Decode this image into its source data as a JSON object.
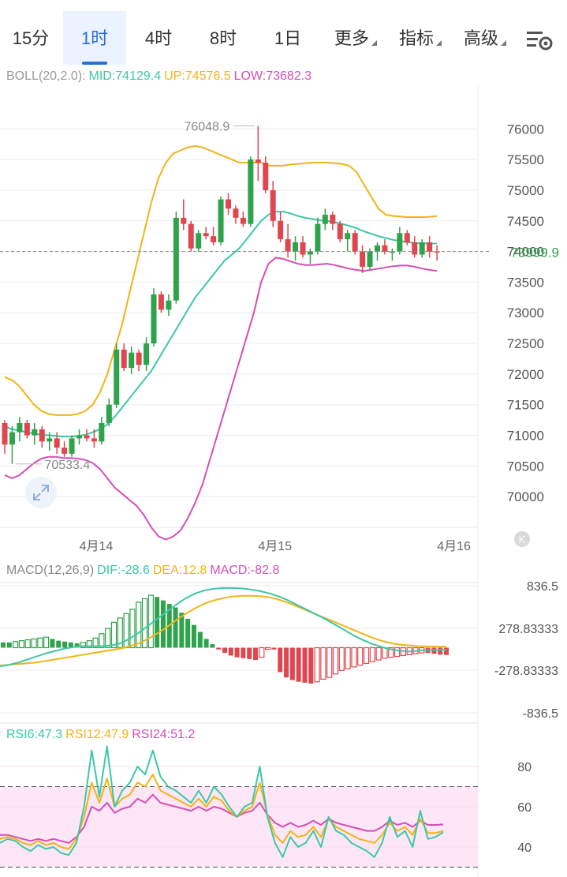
{
  "tabs": [
    {
      "label": "15分",
      "active": false,
      "dropdown": false
    },
    {
      "label": "1时",
      "active": true,
      "dropdown": false
    },
    {
      "label": "4时",
      "active": false,
      "dropdown": false
    },
    {
      "label": "8时",
      "active": false,
      "dropdown": false
    },
    {
      "label": "1日",
      "active": false,
      "dropdown": false
    },
    {
      "label": "更多",
      "active": false,
      "dropdown": true
    },
    {
      "label": "指标",
      "active": false,
      "dropdown": true
    },
    {
      "label": "高级",
      "active": false,
      "dropdown": true
    }
  ],
  "settings_icon": "chart-settings-icon",
  "expand_icon": "expand-arrows-icon",
  "logo_icon": "k-logo-icon",
  "colors": {
    "up": "#2fa24c",
    "down": "#e0464f",
    "mid": "#3cc8a6",
    "upper": "#f0b417",
    "lower": "#d54fb4",
    "label": "#888888",
    "grid": "#eeeeee",
    "rsi_zone": "#fde6f6"
  },
  "boll": {
    "name": "BOLL(20,2.0):",
    "mid_label": "MID:74129.4",
    "up_label": "UP:74576.5",
    "low_label": "LOW:73682.3"
  },
  "macd_legend": {
    "name": "MACD(12,26,9)",
    "dif_label": "DIF:-28.6",
    "dea_label": "DEA:12.8",
    "macd_label": "MACD:-82.8"
  },
  "rsi_legend": {
    "rsi6_label": "RSI6:47.3",
    "rsi12_label": "RSI12:47.9",
    "rsi24_label": "RSI24:51.2"
  },
  "chart_data": [
    {
      "type": "candlestick",
      "panel": "price",
      "y_ticks": [
        "76000",
        "75500",
        "75000",
        "74500",
        "74000",
        "73500",
        "73000",
        "72500",
        "72000",
        "71500",
        "71000",
        "70500",
        "70000"
      ],
      "ylim": [
        69500,
        76300
      ],
      "date_labels": [
        {
          "label": "4月14",
          "index": 11
        },
        {
          "label": "4月15",
          "index": 35
        },
        {
          "label": "4月16",
          "index": 59
        }
      ],
      "current_price": "73999.9",
      "current_price_value": 73999.9,
      "high_marker": {
        "label": "76048.9",
        "index": 34
      },
      "low_marker": {
        "label": "70533.4",
        "index": 1
      },
      "candles": [
        [
          71200,
          71250,
          70700,
          70850
        ],
        [
          70850,
          71150,
          70533.4,
          71050
        ],
        [
          71050,
          71300,
          70900,
          71200
        ],
        [
          71200,
          71250,
          70950,
          71000
        ],
        [
          71000,
          71200,
          70850,
          71100
        ],
        [
          71100,
          71150,
          70800,
          70900
        ],
        [
          70900,
          71050,
          70750,
          70950
        ],
        [
          70950,
          71050,
          70700,
          70800
        ],
        [
          70800,
          70900,
          70650,
          70700
        ],
        [
          70700,
          71000,
          70650,
          70950
        ],
        [
          70950,
          71100,
          70850,
          71000
        ],
        [
          71000,
          71100,
          70900,
          70950
        ],
        [
          70950,
          71100,
          70800,
          70900
        ],
        [
          70900,
          71300,
          70850,
          71200
        ],
        [
          71200,
          71600,
          71150,
          71500
        ],
        [
          71500,
          72500,
          71450,
          72400
        ],
        [
          72400,
          72500,
          72050,
          72100
        ],
        [
          72100,
          72450,
          72000,
          72350
        ],
        [
          72350,
          72400,
          72050,
          72150
        ],
        [
          72150,
          72600,
          72050,
          72500
        ],
        [
          72500,
          73400,
          72450,
          73300
        ],
        [
          73300,
          73350,
          73000,
          73050
        ],
        [
          73050,
          73300,
          72950,
          73200
        ],
        [
          73200,
          74650,
          73150,
          74550
        ],
        [
          74550,
          74850,
          74350,
          74450
        ],
        [
          74450,
          74500,
          74000,
          74050
        ],
        [
          74050,
          74350,
          74000,
          74300
        ],
        [
          74300,
          74400,
          74200,
          74250
        ],
        [
          74250,
          74400,
          74100,
          74150
        ],
        [
          74150,
          74900,
          74100,
          74850
        ],
        [
          74850,
          74950,
          74600,
          74700
        ],
        [
          74700,
          74750,
          74450,
          74550
        ],
        [
          74550,
          74650,
          74400,
          74450
        ],
        [
          74450,
          75550,
          74400,
          75500
        ],
        [
          75500,
          76048.9,
          75150,
          75450
        ],
        [
          75450,
          75550,
          74950,
          75000
        ],
        [
          75000,
          75150,
          74400,
          74500
        ],
        [
          74500,
          74650,
          74150,
          74200
        ],
        [
          74200,
          74450,
          73900,
          74000
        ],
        [
          74000,
          74250,
          73850,
          74150
        ],
        [
          74150,
          74250,
          73900,
          73950
        ],
        [
          73950,
          74050,
          73800,
          74000
        ],
        [
          74000,
          74550,
          73950,
          74450
        ],
        [
          74450,
          74700,
          74350,
          74600
        ],
        [
          74600,
          74650,
          74350,
          74450
        ],
        [
          74450,
          74500,
          74150,
          74200
        ],
        [
          74200,
          74350,
          74000,
          74300
        ],
        [
          74300,
          74350,
          73950,
          74000
        ],
        [
          74000,
          74100,
          73650,
          73750
        ],
        [
          73750,
          74050,
          73700,
          74000
        ],
        [
          74000,
          74150,
          73850,
          74100
        ],
        [
          74100,
          74200,
          73950,
          74000
        ],
        [
          74000,
          74050,
          73850,
          74000
        ],
        [
          74000,
          74400,
          73950,
          74300
        ],
        [
          74300,
          74350,
          74100,
          74150
        ],
        [
          74150,
          74250,
          73900,
          73950
        ],
        [
          73950,
          74200,
          73900,
          74150
        ],
        [
          74150,
          74250,
          73900,
          74000
        ],
        [
          74000,
          74100,
          73850,
          73999.9
        ]
      ],
      "mid": [
        71150,
        71100,
        71080,
        71050,
        71030,
        71010,
        71000,
        70990,
        70980,
        70980,
        70990,
        71010,
        71050,
        71100,
        71180,
        71300,
        71450,
        71600,
        71750,
        71900,
        72050,
        72250,
        72450,
        72650,
        72850,
        73050,
        73250,
        73400,
        73550,
        73700,
        73850,
        73950,
        74050,
        74200,
        74350,
        74500,
        74600,
        74650,
        74650,
        74620,
        74580,
        74550,
        74530,
        74510,
        74500,
        74480,
        74450,
        74420,
        74380,
        74330,
        74290,
        74250,
        74220,
        74190,
        74170,
        74150,
        74140,
        74130,
        74130.5,
        74129.4
      ],
      "upper": [
        71950,
        71900,
        71800,
        71650,
        71500,
        71400,
        71350,
        71330,
        71330,
        71330,
        71350,
        71400,
        71500,
        71700,
        72000,
        72400,
        72800,
        73300,
        73800,
        74300,
        74800,
        75200,
        75450,
        75600,
        75650,
        75700,
        75720,
        75700,
        75650,
        75600,
        75550,
        75500,
        75450,
        75450,
        75450,
        75450,
        75400,
        75400,
        75400,
        75420,
        75430,
        75440,
        75450,
        75450,
        75450,
        75440,
        75430,
        75400,
        75300,
        75100,
        74900,
        74700,
        74600,
        74580,
        74570,
        74560,
        74560,
        74560,
        74565,
        74576.5
      ],
      "lower": [
        70350,
        70300,
        70350,
        70450,
        70550,
        70620,
        70650,
        70650,
        70630,
        70630,
        70620,
        70600,
        70550,
        70450,
        70300,
        70150,
        70050,
        69950,
        69850,
        69700,
        69500,
        69350,
        69300,
        69350,
        69450,
        69650,
        69900,
        70200,
        70600,
        71000,
        71400,
        71800,
        72200,
        72600,
        73000,
        73500,
        73800,
        73900,
        73880,
        73840,
        73800,
        73780,
        73780,
        73790,
        73800,
        73780,
        73750,
        73720,
        73700,
        73680,
        73700,
        73720,
        73740,
        73760,
        73770,
        73770,
        73750,
        73720,
        73700,
        73682.3
      ]
    },
    {
      "type": "bar+line",
      "panel": "macd",
      "y_ticks": [
        "836.5",
        "278.83333",
        "-278.83333",
        "-836.5"
      ],
      "ylim": [
        -900,
        900
      ],
      "histogram": [
        60,
        60,
        70,
        80,
        90,
        100,
        110,
        120,
        100,
        80,
        70,
        60,
        50,
        60,
        80,
        110,
        160,
        220,
        290,
        340,
        390,
        440,
        520,
        560,
        600,
        580,
        540,
        500,
        460,
        400,
        330,
        260,
        180,
        100,
        40,
        -20,
        -60,
        -90,
        -110,
        -120,
        -130,
        -140,
        -110,
        -20,
        -20,
        -280,
        -340,
        -370,
        -390,
        -400,
        -410,
        -390,
        -360,
        -340,
        -300,
        -260,
        -240,
        -220,
        -200,
        -180,
        -160,
        -140,
        -120,
        -110,
        -100,
        -90,
        -80,
        -70,
        -60,
        -60,
        -70,
        -80,
        -82.8
      ],
      "dif": [
        -240,
        -220,
        -190,
        -150,
        -110,
        -70,
        -40,
        -10,
        10,
        20,
        20,
        20,
        30,
        60,
        120,
        200,
        290,
        380,
        470,
        560,
        640,
        700,
        740,
        760,
        770,
        770,
        765,
        750,
        730,
        700,
        660,
        610,
        550,
        490,
        430,
        370,
        300,
        230,
        160,
        100,
        50,
        10,
        -20,
        -40,
        -50,
        -40,
        -30,
        -30,
        -28.6
      ],
      "dea": [
        -230,
        -220,
        -210,
        -200,
        -190,
        -170,
        -150,
        -130,
        -110,
        -90,
        -70,
        -50,
        -30,
        -10,
        20,
        60,
        120,
        190,
        270,
        360,
        440,
        510,
        570,
        610,
        640,
        660,
        670,
        670,
        665,
        650,
        620,
        580,
        530,
        480,
        430,
        380,
        330,
        280,
        230,
        180,
        130,
        90,
        60,
        40,
        30,
        20,
        15,
        13,
        12.8
      ]
    },
    {
      "type": "line",
      "panel": "rsi",
      "y_ticks": [
        "80",
        "60",
        "40"
      ],
      "ylim": [
        30,
        92
      ],
      "dashed_levels": [
        70,
        30
      ],
      "rsi6": [
        42,
        44,
        43,
        40,
        38,
        41,
        39,
        40,
        37,
        36,
        42,
        60,
        88,
        65,
        90,
        60,
        68,
        72,
        80,
        76,
        88,
        75,
        70,
        68,
        65,
        62,
        68,
        62,
        70,
        66,
        60,
        55,
        60,
        62,
        80,
        55,
        42,
        35,
        45,
        40,
        42,
        48,
        40,
        55,
        48,
        46,
        42,
        40,
        38,
        35,
        42,
        55,
        45,
        48,
        40,
        58,
        44,
        45,
        47.3
      ],
      "rsi12": [
        44,
        45,
        44,
        42,
        41,
        43,
        41,
        42,
        40,
        39,
        44,
        55,
        72,
        62,
        74,
        60,
        64,
        66,
        72,
        70,
        76,
        68,
        66,
        64,
        62,
        60,
        64,
        60,
        65,
        63,
        58,
        55,
        58,
        60,
        72,
        56,
        46,
        42,
        48,
        45,
        46,
        50,
        45,
        54,
        50,
        48,
        46,
        44,
        43,
        42,
        46,
        52,
        48,
        50,
        46,
        54,
        47,
        47,
        47.9
      ],
      "rsi24": [
        46,
        46,
        45,
        44,
        43,
        44,
        43,
        44,
        43,
        42,
        45,
        50,
        60,
        58,
        62,
        57,
        59,
        60,
        64,
        62,
        66,
        62,
        61,
        60,
        59,
        58,
        60,
        58,
        60,
        59,
        57,
        55,
        57,
        58,
        62,
        56,
        52,
        50,
        52,
        50,
        51,
        53,
        51,
        54,
        52,
        51,
        50,
        49,
        48,
        48,
        50,
        53,
        51,
        52,
        50,
        53,
        51,
        51,
        51.2
      ]
    }
  ]
}
